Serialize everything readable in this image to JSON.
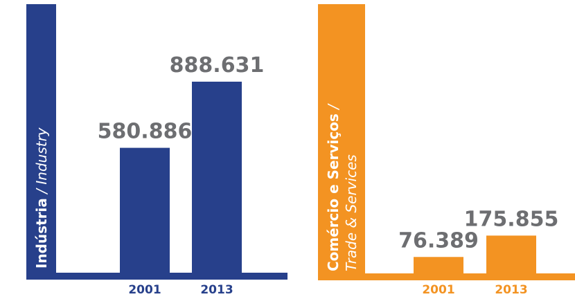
{
  "chart_data": [
    {
      "type": "bar",
      "categories": [
        "2001",
        "2013"
      ],
      "values": [
        580886,
        888631
      ],
      "value_labels": [
        "580.886",
        "888.631"
      ],
      "label_bold": "Indústria",
      "label_italic": " / Industry",
      "color": "#27408b",
      "ylim": [
        0,
        1000000
      ]
    },
    {
      "type": "bar",
      "categories": [
        "2001",
        "2013"
      ],
      "values": [
        76389,
        175855
      ],
      "value_labels": [
        "76.389",
        "175.855"
      ],
      "label_bold": "Comércio e Serviços",
      "label_italic": " /",
      "label_line2": "Trade & Services",
      "color": "#f39322",
      "ylim": [
        0,
        1000000
      ]
    }
  ]
}
